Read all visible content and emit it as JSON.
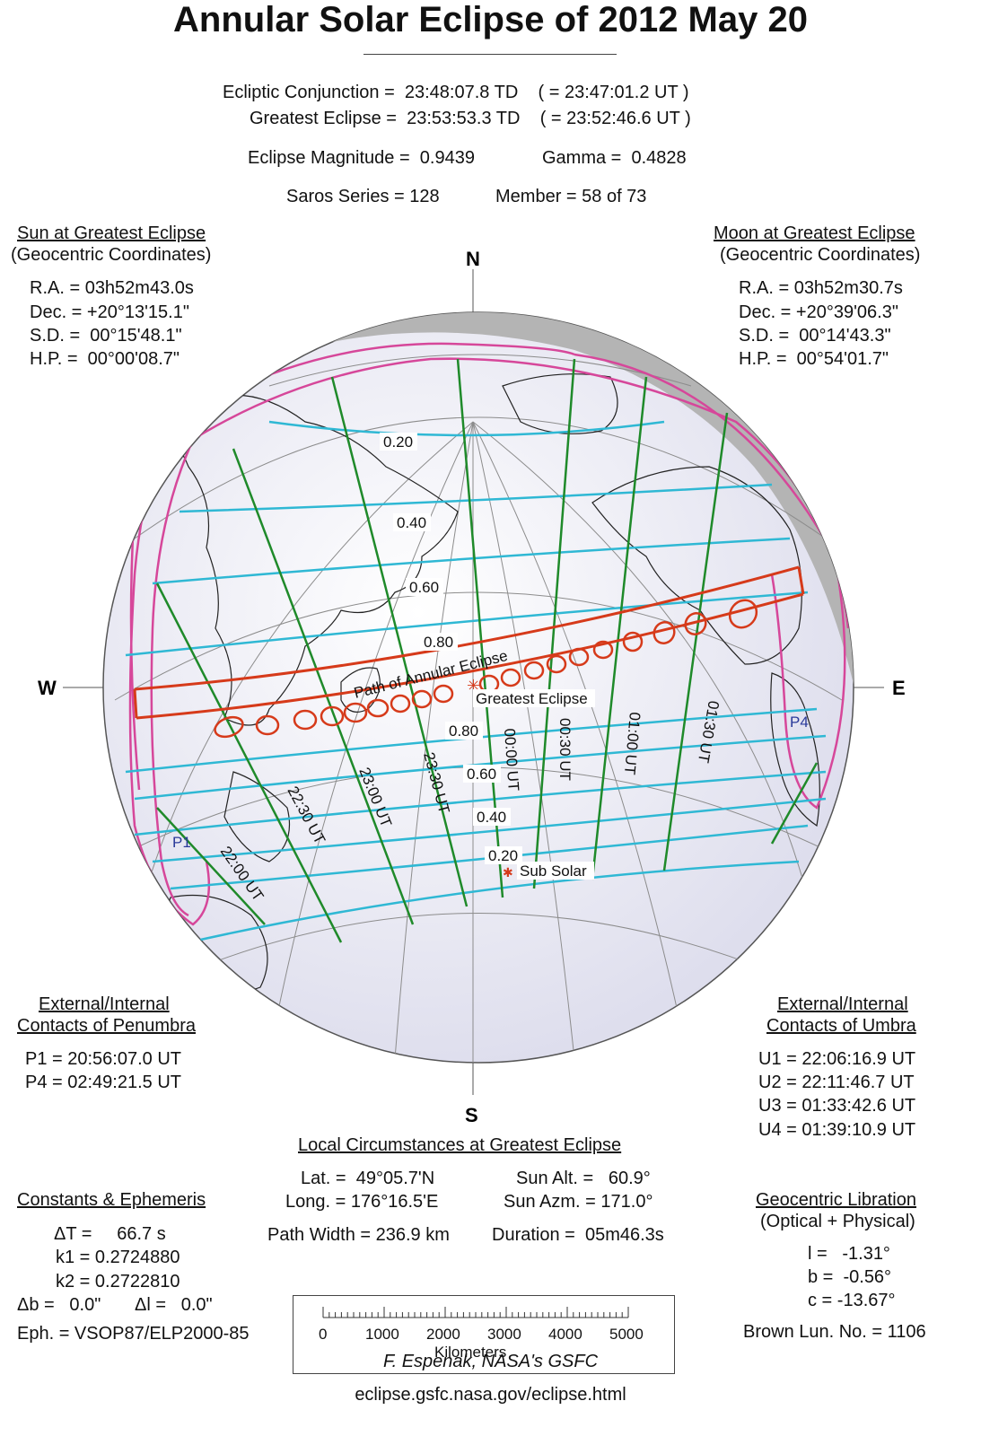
{
  "title": "Annular Solar Eclipse of  2012 May 20",
  "summary": {
    "conjunction": "Ecliptic Conjunction =  23:48:07.8 TD    ( = 23:47:01.2 UT )",
    "greatest": "Greatest Eclipse =  23:53:53.3 TD    ( = 23:52:46.6 UT )",
    "magnitude": "Eclipse Magnitude =  0.9439",
    "gamma": "Gamma =  0.4828",
    "saros": "Saros Series = 128",
    "member": "Member = 58 of 73"
  },
  "sun": {
    "heading": "Sun at Greatest Eclipse",
    "subheading": "(Geocentric Coordinates)",
    "ra": "R.A. = 03h52m43.0s",
    "dec": "Dec. = +20°13'15.1\"",
    "sd": "S.D. =  00°15'48.1\"",
    "hp": "H.P. =  00°00'08.7\""
  },
  "moon": {
    "heading": "Moon at Greatest Eclipse",
    "subheading": "(Geocentric Coordinates)",
    "ra": "R.A. = 03h52m30.7s",
    "dec": "Dec. = +20°39'06.3\"",
    "sd": "S.D. =  00°14'43.3\"",
    "hp": "H.P. =  00°54'01.7\""
  },
  "compass": {
    "n": "N",
    "s": "S",
    "w": "W",
    "e": "E"
  },
  "map_labels": {
    "path": "Path of Annular Eclipse",
    "greatest": "Greatest Eclipse",
    "subsolar": "Sub Solar",
    "p1": "P1",
    "p4": "P4",
    "mag_north": [
      "0.20",
      "0.40",
      "0.60",
      "0.80"
    ],
    "mag_south": [
      "0.80",
      "0.60",
      "0.40",
      "0.20"
    ],
    "times": [
      "22:00 UT",
      "22:30 UT",
      "23:00 UT",
      "23:30 UT",
      "00:00 UT",
      "00:30 UT",
      "01:00 UT",
      "01:30 UT"
    ]
  },
  "penumbra": {
    "heading1": "External/Internal",
    "heading2": "Contacts of Penumbra",
    "p1": "P1 = 20:56:07.0 UT",
    "p4": "P4 = 02:49:21.5 UT"
  },
  "umbra": {
    "heading1": "External/Internal",
    "heading2": "Contacts of Umbra",
    "u1": "U1 = 22:06:16.9 UT",
    "u2": "U2 = 22:11:46.7 UT",
    "u3": "U3 = 01:33:42.6 UT",
    "u4": "U4 = 01:39:10.9 UT"
  },
  "local": {
    "heading": "Local Circumstances at Greatest Eclipse",
    "lat": "Lat. =  49°05.7'N",
    "long": "Long. = 176°16.5'E",
    "sun_alt": "Sun Alt. =   60.9°",
    "sun_azm": "Sun Azm. = 171.0°",
    "path_width": "Path Width = 236.9 km",
    "duration": "Duration =  05m46.3s"
  },
  "constants": {
    "heading": "Constants & Ephemeris",
    "dt": "ΔT =     66.7 s",
    "k1": "k1 = 0.2724880",
    "k2": "k2 = 0.2722810",
    "db": "Δb =   0.0\"",
    "dl": "Δl =   0.0\"",
    "eph": "Eph. = VSOP87/ELP2000-85"
  },
  "libration": {
    "heading": "Geocentric Libration",
    "subheading": "(Optical + Physical)",
    "l": "l =   -1.31°",
    "b": "b =  -0.56°",
    "c": "c = -13.67°",
    "brown": "Brown Lun. No. = 1106"
  },
  "scale": {
    "ticks": [
      "0",
      "1000",
      "2000",
      "3000",
      "4000",
      "5000"
    ],
    "unit": "Kilometers"
  },
  "credit": {
    "author": "F. Espenak, NASA's GSFC",
    "url": "eclipse.gsfc.nasa.gov/eclipse.html"
  },
  "colors": {
    "path": "#d63a1a",
    "magnitude": "#2fb8d4",
    "time": "#1f8a2a",
    "limits": "#d6479a",
    "night": "#b4b4b4",
    "globe": "#eeeef8"
  }
}
